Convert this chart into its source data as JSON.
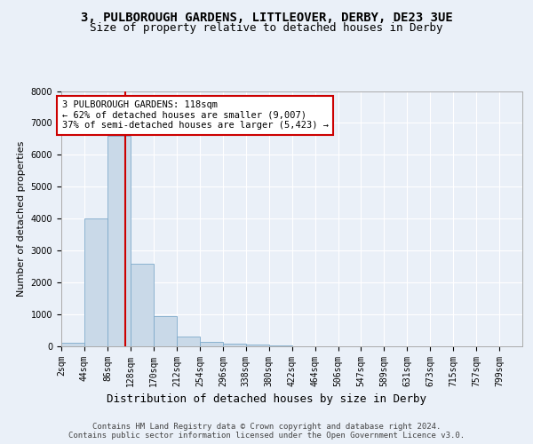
{
  "title1": "3, PULBOROUGH GARDENS, LITTLEOVER, DERBY, DE23 3UE",
  "title2": "Size of property relative to detached houses in Derby",
  "xlabel": "Distribution of detached houses by size in Derby",
  "ylabel": "Number of detached properties",
  "footer": "Contains HM Land Registry data © Crown copyright and database right 2024.\nContains public sector information licensed under the Open Government Licence v3.0.",
  "bin_edges": [
    2,
    44,
    86,
    128,
    170,
    212,
    254,
    296,
    338,
    380,
    422,
    464,
    506,
    547,
    589,
    631,
    673,
    715,
    757,
    799,
    841
  ],
  "bar_heights": [
    100,
    4000,
    6600,
    2600,
    950,
    300,
    130,
    80,
    60,
    40,
    0,
    0,
    0,
    0,
    0,
    0,
    0,
    0,
    0,
    0
  ],
  "bar_color": "#c9d9e8",
  "bar_edge_color": "#7eaacb",
  "vline_x": 118,
  "vline_color": "#cc0000",
  "annotation_text": "3 PULBOROUGH GARDENS: 118sqm\n← 62% of detached houses are smaller (9,007)\n37% of semi-detached houses are larger (5,423) →",
  "annotation_box_color": "#cc0000",
  "ylim": [
    0,
    8000
  ],
  "yticks": [
    0,
    1000,
    2000,
    3000,
    4000,
    5000,
    6000,
    7000,
    8000
  ],
  "background_color": "#eaf0f8",
  "plot_bg_color": "#eaf0f8",
  "grid_color": "#ffffff",
  "title1_fontsize": 10,
  "title2_fontsize": 9,
  "xlabel_fontsize": 9,
  "ylabel_fontsize": 8,
  "tick_fontsize": 7,
  "annotation_fontsize": 7.5,
  "footer_fontsize": 6.5
}
